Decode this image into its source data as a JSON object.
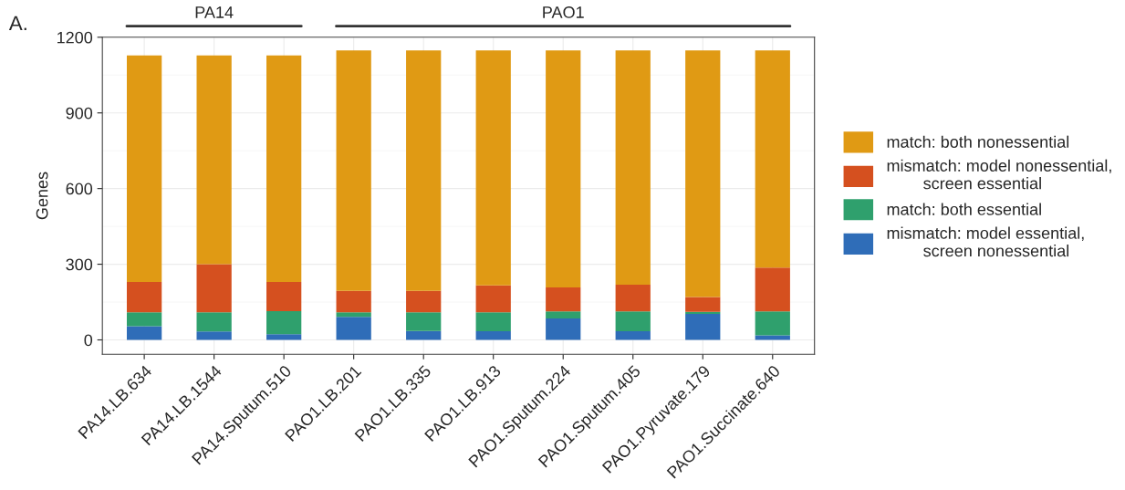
{
  "chart_data": {
    "type": "bar",
    "stacked": true,
    "ylabel": "Genes",
    "categories": [
      "PA14.LB.634",
      "PA14.LB.1544",
      "PA14.Sputum.510",
      "PAO1.LB.201",
      "PAO1.LB.335",
      "PAO1.LB.913",
      "PAO1.Sputum.224",
      "PAO1.Sputum.405",
      "PAO1.Pyruvate.179",
      "PAO1.Succinate.640"
    ],
    "series": [
      {
        "name": "mismatch: model essential,\n        screen nonessential",
        "color": "#2f6db8",
        "values": [
          54,
          33,
          23,
          91,
          35,
          34,
          85,
          34,
          103,
          18
        ]
      },
      {
        "name": "match: both essential",
        "color": "#2fa06d",
        "values": [
          55,
          76,
          91,
          18,
          74,
          75,
          28,
          79,
          8,
          95
        ]
      },
      {
        "name": "mismatch: model nonessential,\n        screen essential",
        "color": "#d5501f",
        "values": [
          121,
          191,
          116,
          85,
          85,
          107,
          95,
          106,
          59,
          174
        ]
      },
      {
        "name": "match: both nonessential",
        "color": "#e09a14",
        "values": [
          898,
          828,
          898,
          954,
          954,
          932,
          940,
          929,
          978,
          861
        ]
      }
    ],
    "ylim": [
      -57,
      1200
    ],
    "yticks": [
      0,
      300,
      600,
      900,
      1200
    ],
    "grid": true,
    "legend": "right",
    "annotations": [
      "A.",
      "PA14",
      "PAO1"
    ]
  }
}
